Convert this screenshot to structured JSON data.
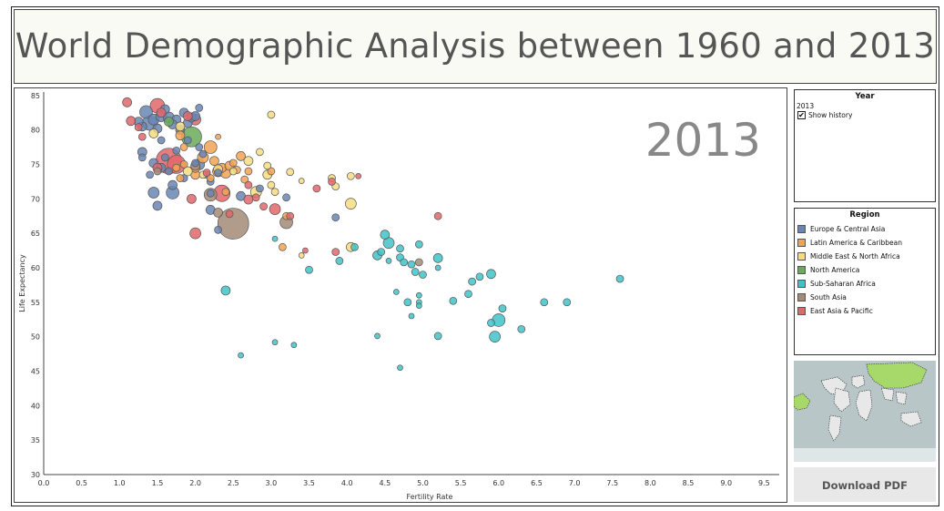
{
  "title": "World Demographic Analysis between 1960 and 2013",
  "year_panel": {
    "title": "Year",
    "value": "2013",
    "show_history_label": "Show history",
    "show_history_checked": "✔"
  },
  "region_panel": {
    "title": "Region",
    "items": [
      {
        "label": "Europe & Central Asia",
        "color": "#6a85b3"
      },
      {
        "label": "Latin America & Caribbean",
        "color": "#f2a353"
      },
      {
        "label": "Middle East & North Africa",
        "color": "#f5dc82"
      },
      {
        "label": "North America",
        "color": "#6aaa5a"
      },
      {
        "label": "Sub-Saharan Africa",
        "color": "#3fc3c9"
      },
      {
        "label": "South Asia",
        "color": "#a38b78"
      },
      {
        "label": "East Asia & Pacific",
        "color": "#e2676b"
      }
    ]
  },
  "download_label": "Download PDF",
  "chart_data": {
    "type": "scatter",
    "title": "",
    "watermark": "2013",
    "xlabel": "Fertility Rate",
    "ylabel": "Life Expectancy",
    "xlim": [
      0,
      9.7
    ],
    "ylim": [
      30,
      85.5
    ],
    "xticks": [
      "0.0",
      "0.5",
      "1.0",
      "1.5",
      "2.0",
      "2.5",
      "3.0",
      "3.5",
      "4.0",
      "4.5",
      "5.0",
      "5.5",
      "6.0",
      "6.5",
      "7.0",
      "7.5",
      "8.0",
      "8.5",
      "9.0",
      "9.5"
    ],
    "yticks": [
      "30",
      "35",
      "40",
      "45",
      "50",
      "55",
      "60",
      "65",
      "70",
      "75",
      "80",
      "85"
    ],
    "grid": false,
    "legend": "right panel",
    "series": [
      {
        "name": "Europe & Central Asia",
        "color": "#6a85b3",
        "points": [
          [
            1.35,
            82.6
          ],
          [
            1.4,
            81.0
          ],
          [
            1.45,
            81.5
          ],
          [
            1.5,
            80.2
          ],
          [
            1.55,
            82.0
          ],
          [
            1.6,
            83.0
          ],
          [
            1.65,
            81.8
          ],
          [
            1.3,
            80.5
          ],
          [
            1.25,
            81.2
          ],
          [
            1.75,
            81.5
          ],
          [
            1.85,
            82.5
          ],
          [
            1.9,
            81.0
          ],
          [
            1.95,
            81.8
          ],
          [
            2.0,
            82.0
          ],
          [
            2.05,
            83.2
          ],
          [
            1.7,
            80.8
          ],
          [
            1.8,
            80.0
          ],
          [
            1.9,
            78.5
          ],
          [
            1.55,
            78.5
          ],
          [
            1.3,
            76.8
          ],
          [
            1.3,
            76.0
          ],
          [
            1.45,
            75.2
          ],
          [
            1.55,
            74.5
          ],
          [
            1.6,
            76.0
          ],
          [
            1.4,
            73.5
          ],
          [
            1.7,
            72.0
          ],
          [
            1.45,
            70.9
          ],
          [
            1.7,
            70.9
          ],
          [
            1.5,
            69.0
          ],
          [
            2.1,
            76.5
          ],
          [
            2.05,
            75.0
          ],
          [
            2.15,
            73.5
          ],
          [
            2.2,
            72.5
          ],
          [
            2.3,
            73.8
          ],
          [
            2.2,
            68.4
          ],
          [
            2.3,
            65.5
          ],
          [
            2.6,
            70.4
          ],
          [
            2.85,
            71.5
          ],
          [
            3.2,
            70.2
          ],
          [
            3.85,
            67.3
          ],
          [
            2.05,
            77.5
          ],
          [
            1.75,
            77.0
          ],
          [
            2.0,
            75.2
          ],
          [
            1.65,
            74.0
          ],
          [
            1.85,
            73.0
          ],
          [
            2.2,
            70.8
          ]
        ],
        "sizes": [
          7,
          8,
          6,
          5,
          6,
          5,
          6,
          5,
          5,
          5,
          5,
          5,
          5,
          5,
          4,
          5,
          5,
          4,
          4,
          5,
          4,
          5,
          5,
          4,
          4,
          5,
          6,
          7,
          5,
          4,
          6,
          4,
          4,
          4,
          5,
          4,
          5,
          4,
          4,
          4,
          4,
          4,
          4,
          4,
          4,
          4
        ]
      },
      {
        "name": "Latin America & Caribbean",
        "color": "#f2a353",
        "points": [
          [
            1.8,
            79.2
          ],
          [
            1.85,
            75.0
          ],
          [
            2.0,
            73.5
          ],
          [
            2.1,
            76.0
          ],
          [
            2.2,
            77.5
          ],
          [
            2.25,
            75.5
          ],
          [
            2.3,
            74.0
          ],
          [
            2.35,
            74.5
          ],
          [
            2.4,
            73.8
          ],
          [
            2.45,
            74.8
          ],
          [
            2.5,
            75.2
          ],
          [
            2.6,
            76.2
          ],
          [
            2.7,
            74.0
          ],
          [
            2.2,
            73.0
          ],
          [
            2.4,
            71.0
          ],
          [
            1.75,
            74.5
          ],
          [
            1.85,
            77.5
          ],
          [
            1.8,
            73.0
          ],
          [
            2.0,
            74.5
          ],
          [
            3.0,
            74.0
          ],
          [
            3.2,
            67.5
          ],
          [
            3.15,
            63.0
          ],
          [
            2.55,
            74.2
          ],
          [
            2.3,
            79.0
          ],
          [
            2.65,
            72.8
          ]
        ],
        "sizes": [
          5,
          4,
          5,
          6,
          7,
          5,
          6,
          5,
          6,
          5,
          4,
          5,
          4,
          4,
          4,
          4,
          4,
          4,
          5,
          4,
          4,
          4,
          4,
          3,
          4
        ]
      },
      {
        "name": "Middle East & North Africa",
        "color": "#f5dc82",
        "points": [
          [
            1.45,
            79.5
          ],
          [
            1.8,
            80.5
          ],
          [
            1.9,
            74.0
          ],
          [
            2.1,
            73.5
          ],
          [
            2.3,
            74.3
          ],
          [
            2.5,
            74.0
          ],
          [
            2.7,
            75.5
          ],
          [
            2.8,
            71.0
          ],
          [
            2.95,
            74.8
          ],
          [
            2.95,
            73.5
          ],
          [
            3.0,
            82.2
          ],
          [
            3.0,
            72.0
          ],
          [
            3.05,
            71.0
          ],
          [
            3.25,
            73.9
          ],
          [
            3.4,
            72.6
          ],
          [
            3.8,
            73.0
          ],
          [
            3.85,
            71.8
          ],
          [
            4.05,
            73.3
          ],
          [
            4.05,
            69.3
          ],
          [
            4.05,
            63.0
          ],
          [
            3.4,
            61.8
          ],
          [
            2.85,
            76.8
          ]
        ],
        "sizes": [
          5,
          5,
          5,
          4,
          5,
          4,
          5,
          6,
          4,
          5,
          4,
          4,
          4,
          4,
          3,
          4,
          4,
          4,
          6,
          5,
          3,
          4
        ]
      },
      {
        "name": "North America",
        "color": "#6aaa5a",
        "points": [
          [
            1.95,
            79.0
          ],
          [
            1.65,
            81.2
          ]
        ],
        "sizes": [
          11,
          5
        ]
      },
      {
        "name": "Sub-Saharan Africa",
        "color": "#3fc3c9",
        "points": [
          [
            2.4,
            56.7
          ],
          [
            2.6,
            47.3
          ],
          [
            3.05,
            64.2
          ],
          [
            3.05,
            49.2
          ],
          [
            3.3,
            48.8
          ],
          [
            3.5,
            59.7
          ],
          [
            3.9,
            61.0
          ],
          [
            4.1,
            63.0
          ],
          [
            4.4,
            61.8
          ],
          [
            4.4,
            50.1
          ],
          [
            4.45,
            62.3
          ],
          [
            4.5,
            64.8
          ],
          [
            4.55,
            63.6
          ],
          [
            4.65,
            56.5
          ],
          [
            4.7,
            62.8
          ],
          [
            4.7,
            61.5
          ],
          [
            4.75,
            60.8
          ],
          [
            4.7,
            45.5
          ],
          [
            4.8,
            55.0
          ],
          [
            4.85,
            53.0
          ],
          [
            4.85,
            60.5
          ],
          [
            4.9,
            59.4
          ],
          [
            4.95,
            56.0
          ],
          [
            4.95,
            55.0
          ],
          [
            4.95,
            63.4
          ],
          [
            5.0,
            59.0
          ],
          [
            5.2,
            60.0
          ],
          [
            5.2,
            50.1
          ],
          [
            5.2,
            61.4
          ],
          [
            5.4,
            55.2
          ],
          [
            5.6,
            56.2
          ],
          [
            5.65,
            58.0
          ],
          [
            5.75,
            58.7
          ],
          [
            5.9,
            52.0
          ],
          [
            5.9,
            59.1
          ],
          [
            5.95,
            50.0
          ],
          [
            6.0,
            52.4
          ],
          [
            6.05,
            54.1
          ],
          [
            6.3,
            51.1
          ],
          [
            6.6,
            55.0
          ],
          [
            6.9,
            55.0
          ],
          [
            7.6,
            58.4
          ],
          [
            4.95,
            54.5
          ],
          [
            4.55,
            61.0
          ]
        ],
        "sizes": [
          5,
          3,
          3,
          3,
          3,
          4,
          4,
          4,
          5,
          3,
          4,
          5,
          6,
          3,
          4,
          4,
          4,
          3,
          4,
          3,
          4,
          4,
          3,
          3,
          4,
          4,
          3,
          4,
          5,
          4,
          4,
          4,
          4,
          4,
          5,
          6,
          7,
          4,
          4,
          4,
          4,
          4,
          3,
          3
        ]
      },
      {
        "name": "South Asia",
        "color": "#a38b78",
        "points": [
          [
            2.5,
            66.4
          ],
          [
            2.0,
            74.8
          ],
          [
            2.2,
            70.6
          ],
          [
            3.2,
            66.6
          ],
          [
            2.3,
            68.0
          ],
          [
            4.95,
            60.8
          ],
          [
            1.5,
            74.0
          ]
        ],
        "sizes": [
          17,
          5,
          7,
          7,
          5,
          4,
          4
        ]
      },
      {
        "name": "East Asia & Pacific",
        "color": "#e2676b",
        "points": [
          [
            1.1,
            84.0
          ],
          [
            1.15,
            81.3
          ],
          [
            1.5,
            83.5
          ],
          [
            1.55,
            82.5
          ],
          [
            1.9,
            82.0
          ],
          [
            2.0,
            81.5
          ],
          [
            1.65,
            75.5
          ],
          [
            1.75,
            75.0
          ],
          [
            1.5,
            74.5
          ],
          [
            1.95,
            70.0
          ],
          [
            2.35,
            70.8
          ],
          [
            2.45,
            67.8
          ],
          [
            2.7,
            69.9
          ],
          [
            2.9,
            68.9
          ],
          [
            3.05,
            68.5
          ],
          [
            3.25,
            67.5
          ],
          [
            3.6,
            71.5
          ],
          [
            3.85,
            62.3
          ],
          [
            3.8,
            72.5
          ],
          [
            4.15,
            73.3
          ],
          [
            2.0,
            65.0
          ],
          [
            2.7,
            72.0
          ],
          [
            5.2,
            67.5
          ],
          [
            1.3,
            79.0
          ],
          [
            2.8,
            70.2
          ],
          [
            2.15,
            73.8
          ],
          [
            1.25,
            80.4
          ],
          [
            3.45,
            62.5
          ]
        ],
        "sizes": [
          5,
          5,
          8,
          5,
          5,
          6,
          14,
          10,
          5,
          5,
          9,
          4,
          5,
          4,
          6,
          4,
          4,
          4,
          4,
          3,
          6,
          4,
          4,
          4,
          4,
          4,
          4,
          3
        ]
      }
    ]
  }
}
